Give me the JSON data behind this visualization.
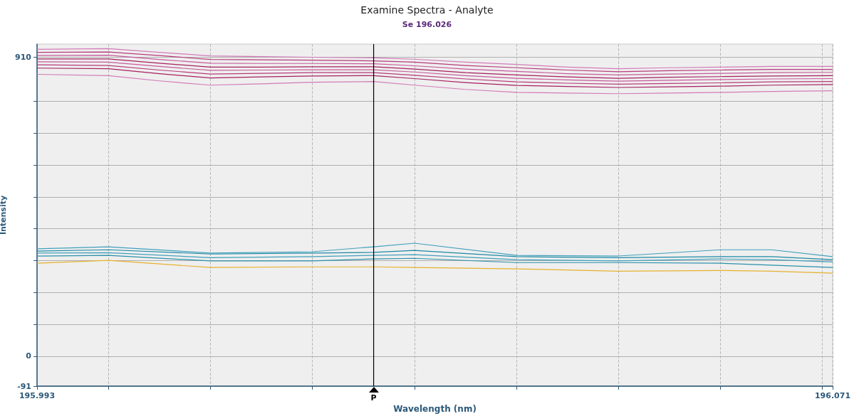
{
  "chart_data": {
    "type": "line",
    "title": "Examine Spectra - Analyte",
    "subtitle": "Se 196.026",
    "xlabel": "Wavelength (nm)",
    "ylabel": "Intensity",
    "x": [
      195.993,
      196.0,
      196.005,
      196.01,
      196.015,
      196.02,
      196.026,
      196.03,
      196.035,
      196.04,
      196.045,
      196.05,
      196.055,
      196.06,
      196.065,
      196.071
    ],
    "series": [
      {
        "color": "#d27bb8",
        "values": [
          934,
          936,
          925,
          914,
          912,
          910,
          908,
          904,
          895,
          888,
          880,
          875,
          878,
          880,
          882,
          882
        ]
      },
      {
        "color": "#b83a7c",
        "values": [
          925,
          926,
          915,
          903,
          902,
          901,
          899,
          895,
          885,
          878,
          871,
          866,
          869,
          871,
          873,
          873
        ]
      },
      {
        "color": "#c85a9c",
        "values": [
          915,
          916,
          903,
          892,
          891,
          891,
          890,
          884,
          874,
          867,
          860,
          856,
          859,
          861,
          863,
          864
        ]
      },
      {
        "color": "#a82060",
        "values": [
          905,
          905,
          892,
          880,
          880,
          881,
          881,
          874,
          863,
          856,
          850,
          846,
          849,
          851,
          853,
          854
        ]
      },
      {
        "color": "#c85a9c",
        "values": [
          896,
          895,
          882,
          870,
          871,
          872,
          872,
          865,
          854,
          846,
          841,
          837,
          840,
          842,
          844,
          845
        ]
      },
      {
        "color": "#b83a7c",
        "values": [
          887,
          885,
          871,
          859,
          861,
          863,
          863,
          855,
          844,
          835,
          831,
          828,
          830,
          832,
          835,
          836
        ]
      },
      {
        "color": "#a82060",
        "values": [
          877,
          875,
          860,
          847,
          850,
          853,
          854,
          845,
          833,
          824,
          821,
          818,
          820,
          822,
          825,
          827
        ]
      },
      {
        "color": "#d27bb8",
        "values": [
          858,
          854,
          838,
          825,
          829,
          834,
          836,
          825,
          812,
          803,
          801,
          799,
          801,
          803,
          806,
          808
        ]
      },
      {
        "color": "#40a0bc",
        "x": [
          195.993,
          196.0,
          196.01,
          196.02,
          196.026,
          196.03,
          196.04,
          196.05,
          196.06,
          196.065,
          196.071
        ],
        "values": [
          327,
          333,
          314,
          318,
          333,
          344,
          307,
          305,
          324,
          324,
          303
        ]
      },
      {
        "color": "#1c8aa6",
        "x": [
          195.993,
          196.0,
          196.01,
          196.02,
          196.026,
          196.03,
          196.04,
          196.05,
          196.06,
          196.065,
          196.071
        ],
        "values": [
          320,
          324,
          311,
          314,
          316,
          322,
          303,
          300,
          303,
          303,
          294
        ]
      },
      {
        "color": "#40a0bc",
        "x": [
          195.993,
          196.0,
          196.01,
          196.02,
          196.026,
          196.03,
          196.04,
          196.05,
          196.06,
          196.065,
          196.071
        ],
        "values": [
          314,
          315,
          300,
          303,
          307,
          309,
          294,
          290,
          296,
          294,
          287
        ]
      },
      {
        "color": "#2a90aa",
        "x": [
          195.993,
          196.0,
          196.01,
          196.02,
          196.026,
          196.03,
          196.04,
          196.05,
          196.06,
          196.065,
          196.071
        ],
        "values": [
          305,
          307,
          290,
          290,
          296,
          298,
          285,
          285,
          283,
          277,
          270
        ]
      },
      {
        "color": "#e6b22e",
        "x": [
          195.993,
          196.0,
          196.01,
          196.02,
          196.026,
          196.03,
          196.04,
          196.05,
          196.06,
          196.065,
          196.071
        ],
        "values": [
          283,
          292,
          270,
          272,
          272,
          270,
          266,
          259,
          261,
          259,
          253
        ]
      }
    ],
    "xlim": [
      195.993,
      196.071
    ],
    "xticks": [
      195.993,
      {
        "value": 196.0,
        "label": null
      },
      {
        "value": 196.01,
        "label": null
      },
      {
        "value": 196.02,
        "label": null
      },
      {
        "value": 196.03,
        "label": null
      },
      {
        "value": 196.04,
        "label": null
      },
      {
        "value": 196.05,
        "label": null
      },
      {
        "value": 196.06,
        "label": null
      },
      {
        "value": 196.07,
        "label": null
      },
      196.071
    ],
    "ylim": [
      -91,
      950
    ],
    "yticks": [
      -91,
      0,
      {
        "value": 97,
        "label": null
      },
      {
        "value": 194,
        "label": null
      },
      {
        "value": 291,
        "label": null
      },
      {
        "value": 388,
        "label": null
      },
      {
        "value": 485,
        "label": null
      },
      {
        "value": 582,
        "label": null
      },
      {
        "value": 679,
        "label": null
      },
      {
        "value": 776,
        "label": null
      },
      910
    ],
    "ref_lines": [
      {
        "axis": "x",
        "value": 196.026,
        "label": "P",
        "color": "#000000"
      }
    ],
    "grid": true,
    "marker": "none",
    "line_style": "solid"
  }
}
